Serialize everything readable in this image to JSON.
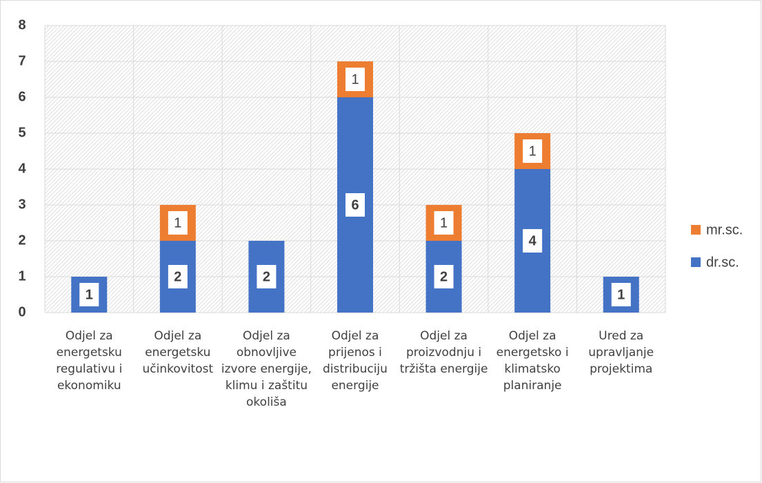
{
  "chart_data": {
    "type": "stacked_bar",
    "categories": [
      "Odjel za energetsku regulativu i ekonomiku",
      "Odjel za energetsku učinkovitost",
      "Odjel za obnovljive izvore energije, klimu i zaštitu okoliša",
      "Odjel za prijenos i distribuciju energije",
      "Odjel za proizvodnju i tržišta energije",
      "Odjel za energetsko i klimatsko planiranje",
      "Ured za upravljanje projektima"
    ],
    "series": [
      {
        "name": "dr.sc.",
        "color": "#4472c4",
        "values": [
          1,
          2,
          2,
          6,
          2,
          4,
          1
        ]
      },
      {
        "name": "mr.sc.",
        "color": "#ed7d31",
        "values": [
          null,
          1,
          null,
          1,
          1,
          1,
          null
        ]
      }
    ],
    "ylim": [
      0,
      8
    ],
    "yticks": [
      0,
      1,
      2,
      3,
      4,
      5,
      6,
      7,
      8
    ],
    "grid": true,
    "legend": "right"
  }
}
